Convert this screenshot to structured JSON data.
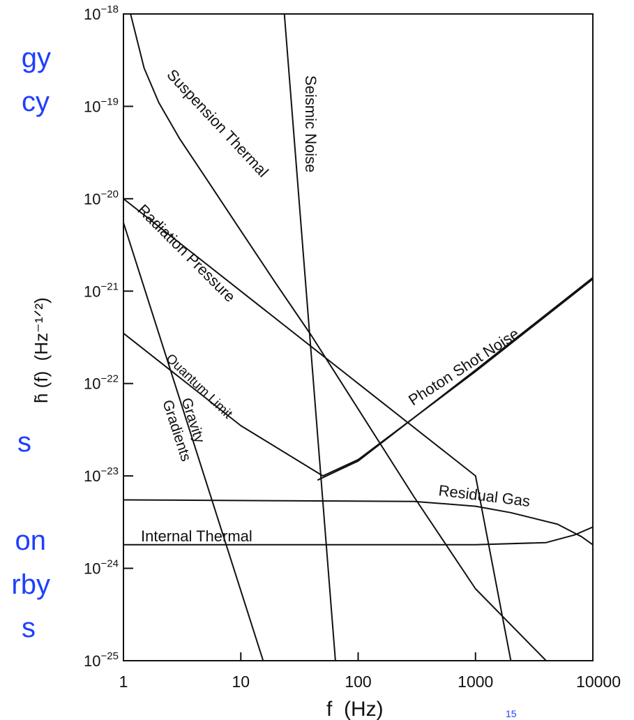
{
  "slide_fragments": [
    "gy",
    "cy",
    "s",
    "on",
    "rby",
    "s"
  ],
  "slide_number": "15",
  "chart_data": {
    "type": "line",
    "x_scale": "log",
    "y_scale": "log",
    "xlim": [
      1,
      10000
    ],
    "ylim": [
      1e-25,
      1e-18
    ],
    "xlabel": "f  (Hz)",
    "ylabel": "h̃ (f)  (Hz⁻¹ᐟ²)",
    "x_ticks": [
      {
        "value": 1,
        "label": "1"
      },
      {
        "value": 10,
        "label": "10"
      },
      {
        "value": 100,
        "label": "100"
      },
      {
        "value": 1000,
        "label": "1000"
      },
      {
        "value": 10000,
        "label": "10000"
      }
    ],
    "y_ticks": [
      {
        "value": 1e-18,
        "exp": "−18"
      },
      {
        "value": 1e-19,
        "exp": "−19"
      },
      {
        "value": 1e-20,
        "exp": "−20"
      },
      {
        "value": 1e-21,
        "exp": "−21"
      },
      {
        "value": 1e-22,
        "exp": "−22"
      },
      {
        "value": 1e-23,
        "exp": "−23"
      },
      {
        "value": 1e-24,
        "exp": "−24"
      },
      {
        "value": 1e-25,
        "exp": "−25"
      }
    ],
    "series": [
      {
        "name": "Seismic Noise",
        "x": [
          23.5,
          64
        ],
        "y": [
          1e-18,
          1e-25
        ]
      },
      {
        "name": "Suspension Thermal",
        "x": [
          1.15,
          1.5,
          2,
          3,
          5,
          10,
          20,
          40,
          100,
          300,
          1000,
          4000
        ],
        "y": [
          1e-18,
          2.6e-19,
          1.1e-19,
          4.5e-20,
          1.7e-20,
          4.5e-21,
          1.2e-21,
          3.3e-22,
          5.3e-23,
          5.9e-24,
          6e-25,
          1e-25
        ]
      },
      {
        "name": "Radiation Pressure",
        "x": [
          1,
          10,
          100,
          1000,
          2000
        ],
        "y": [
          1e-20,
          1e-21,
          1e-22,
          1e-23,
          1e-25
        ]
      },
      {
        "name": "Gravity Gradients",
        "x": [
          1,
          15.5
        ],
        "y": [
          5.5e-21,
          1e-25
        ]
      },
      {
        "name": "Quantum Limit",
        "x": [
          1,
          10,
          50,
          100,
          1000,
          10000
        ],
        "y": [
          3.5e-22,
          3.5e-23,
          1e-23,
          1.5e-23,
          1.35e-22,
          1.35e-21
        ]
      },
      {
        "name": "Photon Shot Noise",
        "x": [
          45,
          100,
          1000,
          10000
        ],
        "y": [
          9e-24,
          1.45e-23,
          1.4e-22,
          1.4e-21
        ]
      },
      {
        "name": "Residual Gas",
        "x": [
          1,
          300,
          1000,
          2000,
          5000,
          8000,
          10000
        ],
        "y": [
          5.5e-24,
          5.3e-24,
          4.7e-24,
          4e-24,
          3e-24,
          2.2e-24,
          1.8e-24
        ]
      },
      {
        "name": "Internal Thermal",
        "x": [
          1,
          1000,
          4000,
          7000,
          10000
        ],
        "y": [
          1.8e-24,
          1.8e-24,
          1.9e-24,
          2.3e-24,
          2.8e-24
        ]
      }
    ],
    "annotations": [
      "Suspension Thermal",
      "Seismic Noise",
      "Radiation Pressure",
      "Quantum Limit",
      "Gravity",
      "Gradients",
      "Photon Shot Noise",
      "Residual Gas",
      "Internal  Thermal"
    ],
    "grid": false
  }
}
